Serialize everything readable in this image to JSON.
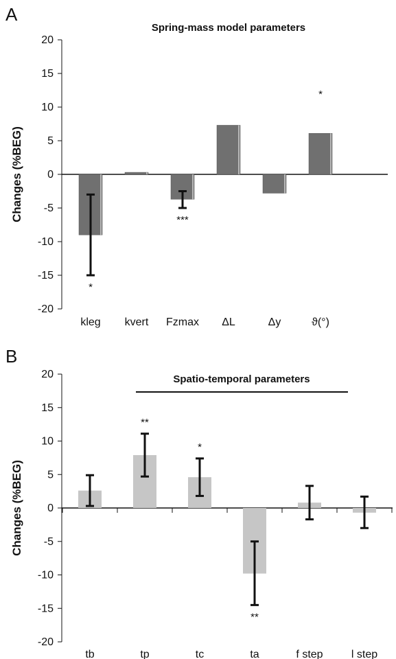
{
  "chart_data": [
    {
      "panel_label": "A",
      "type": "bar",
      "title": "Spring-mass model parameters",
      "ylabel": "Changes (%BEG)",
      "ylim": [
        -20,
        20
      ],
      "yticks": [
        20,
        15,
        10,
        5,
        0,
        -5,
        -10,
        -15,
        -20
      ],
      "categories": [
        "kleg",
        "kvert",
        "Fzmax",
        "ΔL",
        "Δy",
        "ϑ(°)"
      ],
      "values": [
        -9.0,
        0.3,
        -3.7,
        7.3,
        -2.8,
        6.1
      ],
      "error_low": [
        -15.0,
        null,
        -5.0,
        null,
        null,
        null
      ],
      "error_high": [
        -3.0,
        null,
        -2.5,
        null,
        null,
        null
      ],
      "significance": [
        "*",
        "",
        "***",
        "",
        "",
        "*"
      ],
      "significance_pos": [
        "below",
        "",
        "below",
        "",
        "",
        "above"
      ],
      "bar_color": "#707070",
      "grid": false
    },
    {
      "panel_label": "B",
      "type": "bar",
      "title": "Spatio-temporal parameters",
      "ylabel": "Changes (%BEG)",
      "ylim": [
        -20,
        20
      ],
      "yticks": [
        20,
        15,
        10,
        5,
        0,
        -5,
        -10,
        -15,
        -20
      ],
      "categories": [
        "tb",
        "tp",
        "tc",
        "ta",
        "f step",
        "l step"
      ],
      "values": [
        2.6,
        7.9,
        4.6,
        -9.8,
        0.8,
        -0.7
      ],
      "error_low": [
        0.3,
        4.7,
        1.8,
        -14.5,
        -1.7,
        -3.0
      ],
      "error_high": [
        4.9,
        11.1,
        7.4,
        -5.0,
        3.3,
        1.7
      ],
      "significance": [
        "",
        "**",
        "*",
        "**",
        "",
        ""
      ],
      "significance_pos": [
        "",
        "above",
        "above",
        "below",
        "",
        ""
      ],
      "bar_color": "#c6c6c6",
      "grid": false
    }
  ]
}
